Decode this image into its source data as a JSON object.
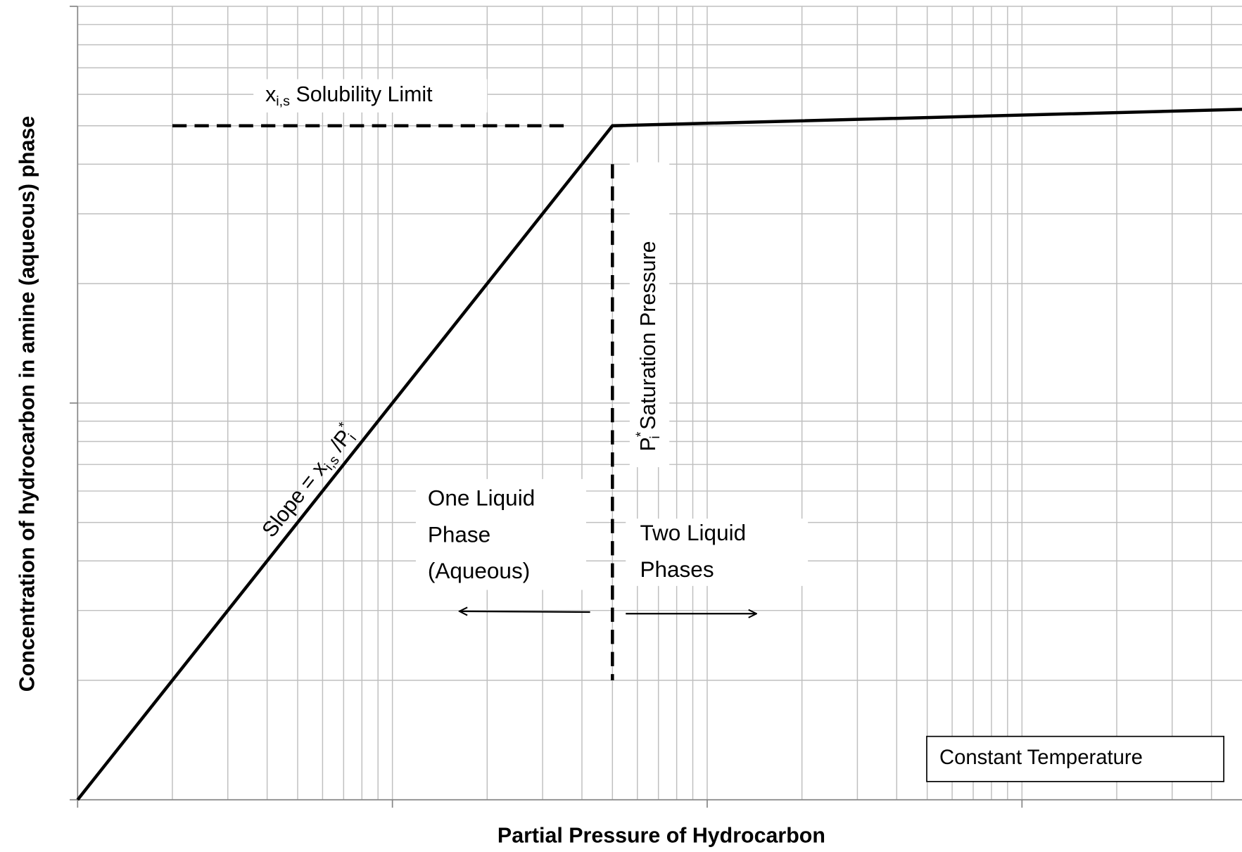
{
  "chart_data": {
    "type": "line",
    "xlabel": "Partial Pressure of Hydrocarbon",
    "ylabel": "Concentration of hydrocarbon in amine (aqueous) phase",
    "xscale": "log",
    "yscale": "log",
    "xlim": [
      1,
      5000
    ],
    "ylim": [
      1,
      100
    ],
    "xticks": [
      1,
      10,
      100,
      1000
    ],
    "yticks": [
      1,
      10,
      100
    ],
    "xminor": [
      2,
      3,
      4,
      5,
      6,
      7,
      8,
      9,
      20,
      30,
      40,
      50,
      60,
      70,
      80,
      90,
      200,
      300,
      400,
      500,
      600,
      700,
      800,
      900,
      2000,
      3000,
      4000
    ],
    "yminor": [
      2,
      3,
      4,
      5,
      6,
      7,
      8,
      9,
      20,
      30,
      40,
      50,
      60,
      70,
      80,
      90
    ],
    "grid": true,
    "series": [
      {
        "color": "#000000",
        "style": "solid",
        "x": [
          1,
          50,
          5000
        ],
        "values": [
          1,
          50,
          55
        ]
      },
      {
        "color": "#000000",
        "style": "dashed",
        "x": [
          2,
          37
        ],
        "values": [
          50,
          50
        ]
      },
      {
        "color": "#000000",
        "style": "dashed",
        "x": [
          50,
          50
        ],
        "values": [
          40,
          2
        ]
      }
    ],
    "annotations": [
      {
        "parts": [
          {
            "text": "x",
            "style": "normal"
          },
          {
            "text": "i,s",
            "style": "sub"
          },
          {
            "text": " Solubility Limit",
            "style": "normal"
          }
        ]
      },
      {
        "parts": [
          {
            "text": "P",
            "style": "normal"
          },
          {
            "text": "*",
            "style": "sup"
          },
          {
            "text": "i",
            "style": "sub"
          },
          {
            "text": " Saturation Pressure",
            "style": "normal"
          }
        ]
      },
      {
        "parts": [
          {
            "text": "Slope = x",
            "style": "normal"
          },
          {
            "text": "i,s",
            "style": "sub"
          },
          {
            "text": " /P",
            "style": "normal"
          },
          {
            "text": "*",
            "style": "sup"
          },
          {
            "text": "i",
            "style": "sub"
          }
        ]
      },
      {
        "lines": [
          "One Liquid",
          "Phase",
          "(Aqueous)"
        ]
      },
      {
        "lines": [
          "Two Liquid",
          "Phases"
        ]
      },
      {
        "lines": [
          "Constant Temperature"
        ],
        "box": true
      }
    ]
  }
}
